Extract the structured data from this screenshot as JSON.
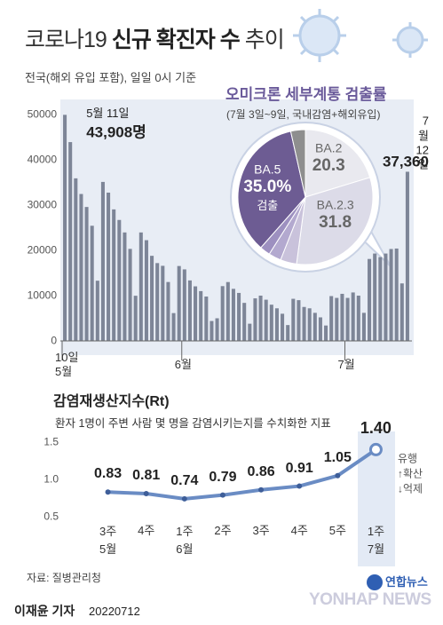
{
  "chart_data": [
    {
      "type": "bar",
      "title": [
        "코로나19",
        "신규 확진자 수",
        "추이"
      ],
      "subtitle": "전국(해외 유입 포함), 일일 0시 기준",
      "categories": [
        "10일\n5월",
        null,
        null,
        null,
        null,
        null,
        null,
        null,
        null,
        null,
        null,
        null,
        null,
        null,
        null,
        null,
        null,
        null,
        null,
        null,
        null,
        null,
        "6월",
        null,
        null,
        null,
        null,
        null,
        null,
        null,
        null,
        null,
        null,
        null,
        null,
        null,
        null,
        null,
        null,
        null,
        null,
        null,
        null,
        null,
        null,
        null,
        null,
        null,
        null,
        null,
        null,
        null,
        "7월",
        null,
        null,
        null,
        null,
        null,
        null,
        null,
        null,
        null,
        null,
        null
      ],
      "values": [
        49933,
        43908,
        35906,
        32451,
        29581,
        25434,
        13296,
        35117,
        32751,
        29046,
        26714,
        23956,
        20325,
        9975,
        23955,
        22248,
        18796,
        17187,
        16585,
        13010,
        6144,
        16542,
        15797,
        13358,
        12051,
        11000,
        9800,
        4400,
        5000,
        12100,
        13000,
        11500,
        10600,
        8400,
        3800,
        9400,
        10000,
        9100,
        8000,
        7200,
        6000,
        3500,
        9300,
        9000,
        7500,
        7200,
        6200,
        5200,
        3400,
        9900,
        9500,
        10400,
        9500,
        10700,
        10000,
        6200,
        18100,
        19300,
        18500,
        19300,
        20300,
        20400,
        12700,
        37360
      ],
      "value_labels": [
        null,
        "43,908명",
        null,
        null,
        null,
        null,
        null,
        null,
        null,
        null,
        null,
        null,
        null,
        null,
        null,
        null,
        null,
        null,
        null,
        null,
        null,
        null,
        null,
        null,
        null,
        null,
        null,
        null,
        null,
        null,
        null,
        null,
        null,
        null,
        null,
        null,
        null,
        null,
        null,
        null,
        null,
        null,
        null,
        null,
        null,
        null,
        null,
        null,
        null,
        null,
        null,
        null,
        null,
        null,
        null,
        null,
        null,
        null,
        null,
        null,
        null,
        null,
        null,
        "37,360"
      ],
      "annotations": [
        null,
        "5월 11일",
        null,
        null,
        null,
        null,
        null,
        null,
        null,
        null,
        null,
        null,
        null,
        null,
        null,
        null,
        null,
        null,
        null,
        null,
        null,
        null,
        null,
        null,
        null,
        null,
        null,
        null,
        null,
        null,
        null,
        null,
        null,
        null,
        null,
        null,
        null,
        null,
        null,
        null,
        null,
        null,
        null,
        null,
        null,
        null,
        null,
        null,
        null,
        null,
        null,
        null,
        null,
        null,
        null,
        null,
        null,
        null,
        null,
        null,
        null,
        null,
        null,
        "7월 12일"
      ],
      "color": "#7d8597",
      "ylim": [
        0,
        50000
      ],
      "yticks": [
        0,
        10000,
        20000,
        30000,
        40000,
        50000
      ],
      "grid": false
    },
    {
      "type": "pie",
      "title": "오미크론 세부계통 검출률",
      "subtitle": "(7월 3일~9일, 국내감염+해외유입)",
      "labels": [
        "BA.2",
        "BA.2.3",
        null,
        null,
        null,
        "BA.5",
        null
      ],
      "values": [
        20.3,
        31.8,
        3.9,
        3.0,
        2.5,
        35.0,
        3.5
      ],
      "value_labels": [
        null,
        null,
        null,
        null,
        null,
        "35.0%",
        null
      ],
      "slice_notes": [
        null,
        null,
        null,
        null,
        null,
        "검출",
        null
      ],
      "colors": [
        "#e9e9ef",
        "#dcdbe8",
        "#c9c2db",
        "#b3a9cf",
        "#9d90c0",
        "#6d5c93",
        "#8e8e8e"
      ]
    },
    {
      "type": "line",
      "title": "감염재생산지수(Rt)",
      "subtitle": "환자 1명이 주변 사람 몇 명을 감염시키는지를 수치화한 지표",
      "categories": [
        "3주\n5월",
        "4주",
        "1주\n6월",
        "2주",
        "3주",
        "4주",
        "5주",
        "1주\n7월"
      ],
      "values": [
        0.83,
        0.81,
        0.74,
        0.79,
        0.86,
        0.91,
        1.05,
        1.4
      ],
      "value_labels": [
        "0.83",
        "0.81",
        "0.74",
        "0.79",
        "0.86",
        "0.91",
        "1.05",
        "1.40"
      ],
      "notes": [
        "유행",
        "↑확산",
        "↓억제"
      ],
      "color": "#6a8cc4",
      "ylim": [
        0.5,
        1.55
      ],
      "yticks": [
        0.5,
        {
          "value": 1,
          "label": "1.0"
        },
        1.5
      ],
      "grid": false
    }
  ],
  "source": "자료: 질병관리청",
  "byline": "이재윤 기자",
  "date": "20220712",
  "logo": {
    "korean": "연합뉴스",
    "english": "YONHAP NEWS"
  }
}
